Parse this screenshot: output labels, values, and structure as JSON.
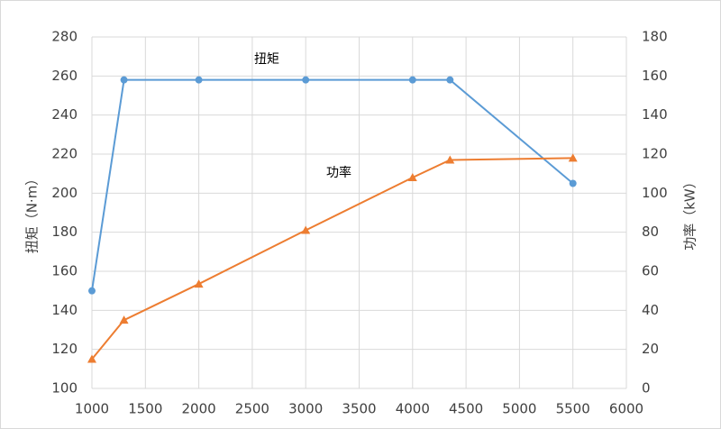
{
  "chart_data": {
    "type": "line",
    "x": [
      1000,
      1300,
      2000,
      3000,
      4000,
      4350,
      5500
    ],
    "series": [
      {
        "name": "扭矩",
        "color": "#5b9bd5",
        "marker": "circle",
        "values": [
          150,
          258,
          258,
          258,
          258,
          258,
          205
        ]
      },
      {
        "name": "功率",
        "color": "#ed7d31",
        "marker": "triangle",
        "axis": "y2",
        "values": [
          15,
          35,
          53.5,
          81,
          108,
          117,
          118
        ]
      }
    ],
    "annotations": [
      "扭矩",
      "功率"
    ],
    "y_label": "扭矩（N·m）",
    "y2_label": "功率（kW）",
    "xlim": [
      1000,
      6000
    ],
    "xticks": [
      1000,
      1500,
      2000,
      2500,
      3000,
      3500,
      4000,
      4500,
      5000,
      5500,
      6000
    ],
    "ylim": [
      100,
      280
    ],
    "yticks": [
      100,
      120,
      140,
      160,
      180,
      200,
      220,
      240,
      260,
      280
    ],
    "y2lim": [
      0,
      180
    ],
    "y2ticks": [
      0,
      20,
      40,
      60,
      80,
      100,
      120,
      140,
      160,
      180
    ],
    "grid": true
  }
}
